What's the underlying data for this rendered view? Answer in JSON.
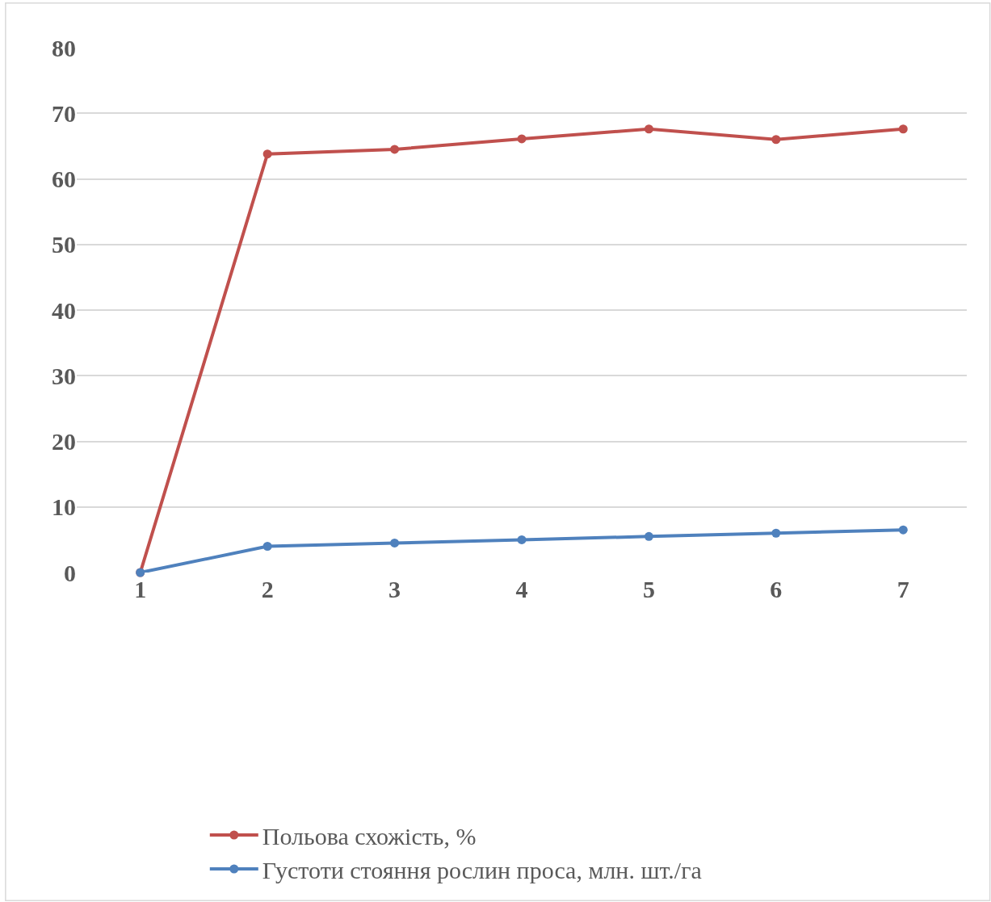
{
  "chart_data": {
    "type": "line",
    "categories": [
      "1",
      "2",
      "3",
      "4",
      "5",
      "6",
      "7"
    ],
    "series": [
      {
        "name": "Польова схожість, %",
        "color": "#c0504d",
        "values": [
          0,
          63.8,
          64.5,
          66.1,
          67.6,
          66.0,
          67.6
        ]
      },
      {
        "name": "Густоти стояння рослин проса, млн. шт./га",
        "color": "#4f81bd",
        "values": [
          0,
          4.0,
          4.5,
          5.0,
          5.5,
          6.0,
          6.5
        ]
      }
    ],
    "ylim": [
      0,
      80
    ],
    "yticks": [
      0,
      10,
      20,
      30,
      40,
      50,
      60,
      70,
      80
    ],
    "grid": "y",
    "legend": "bottom",
    "marker": "circle",
    "line_style": "solid"
  }
}
